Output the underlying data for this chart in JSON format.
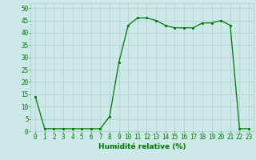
{
  "x": [
    0,
    1,
    2,
    3,
    4,
    5,
    6,
    7,
    8,
    9,
    10,
    11,
    12,
    13,
    14,
    15,
    16,
    17,
    18,
    19,
    20,
    21,
    22,
    23
  ],
  "y": [
    14,
    1,
    1,
    1,
    1,
    1,
    1,
    1,
    6,
    28,
    43,
    46,
    46,
    45,
    43,
    42,
    42,
    42,
    44,
    44,
    45,
    43,
    1,
    1
  ],
  "line_color": "#007700",
  "marker": "s",
  "marker_size": 1.8,
  "line_width": 0.9,
  "bg_color": "#cce8e8",
  "grid_color": "#aac8c8",
  "xlabel": "Humidité relative (%)",
  "xlabel_color": "#007700",
  "xlabel_fontsize": 6.5,
  "ylabel_ticks": [
    0,
    5,
    10,
    15,
    20,
    25,
    30,
    35,
    40,
    45,
    50
  ],
  "xlim": [
    -0.5,
    23.5
  ],
  "ylim": [
    0,
    52
  ],
  "tick_fontsize": 5.5,
  "tick_color": "#007700"
}
